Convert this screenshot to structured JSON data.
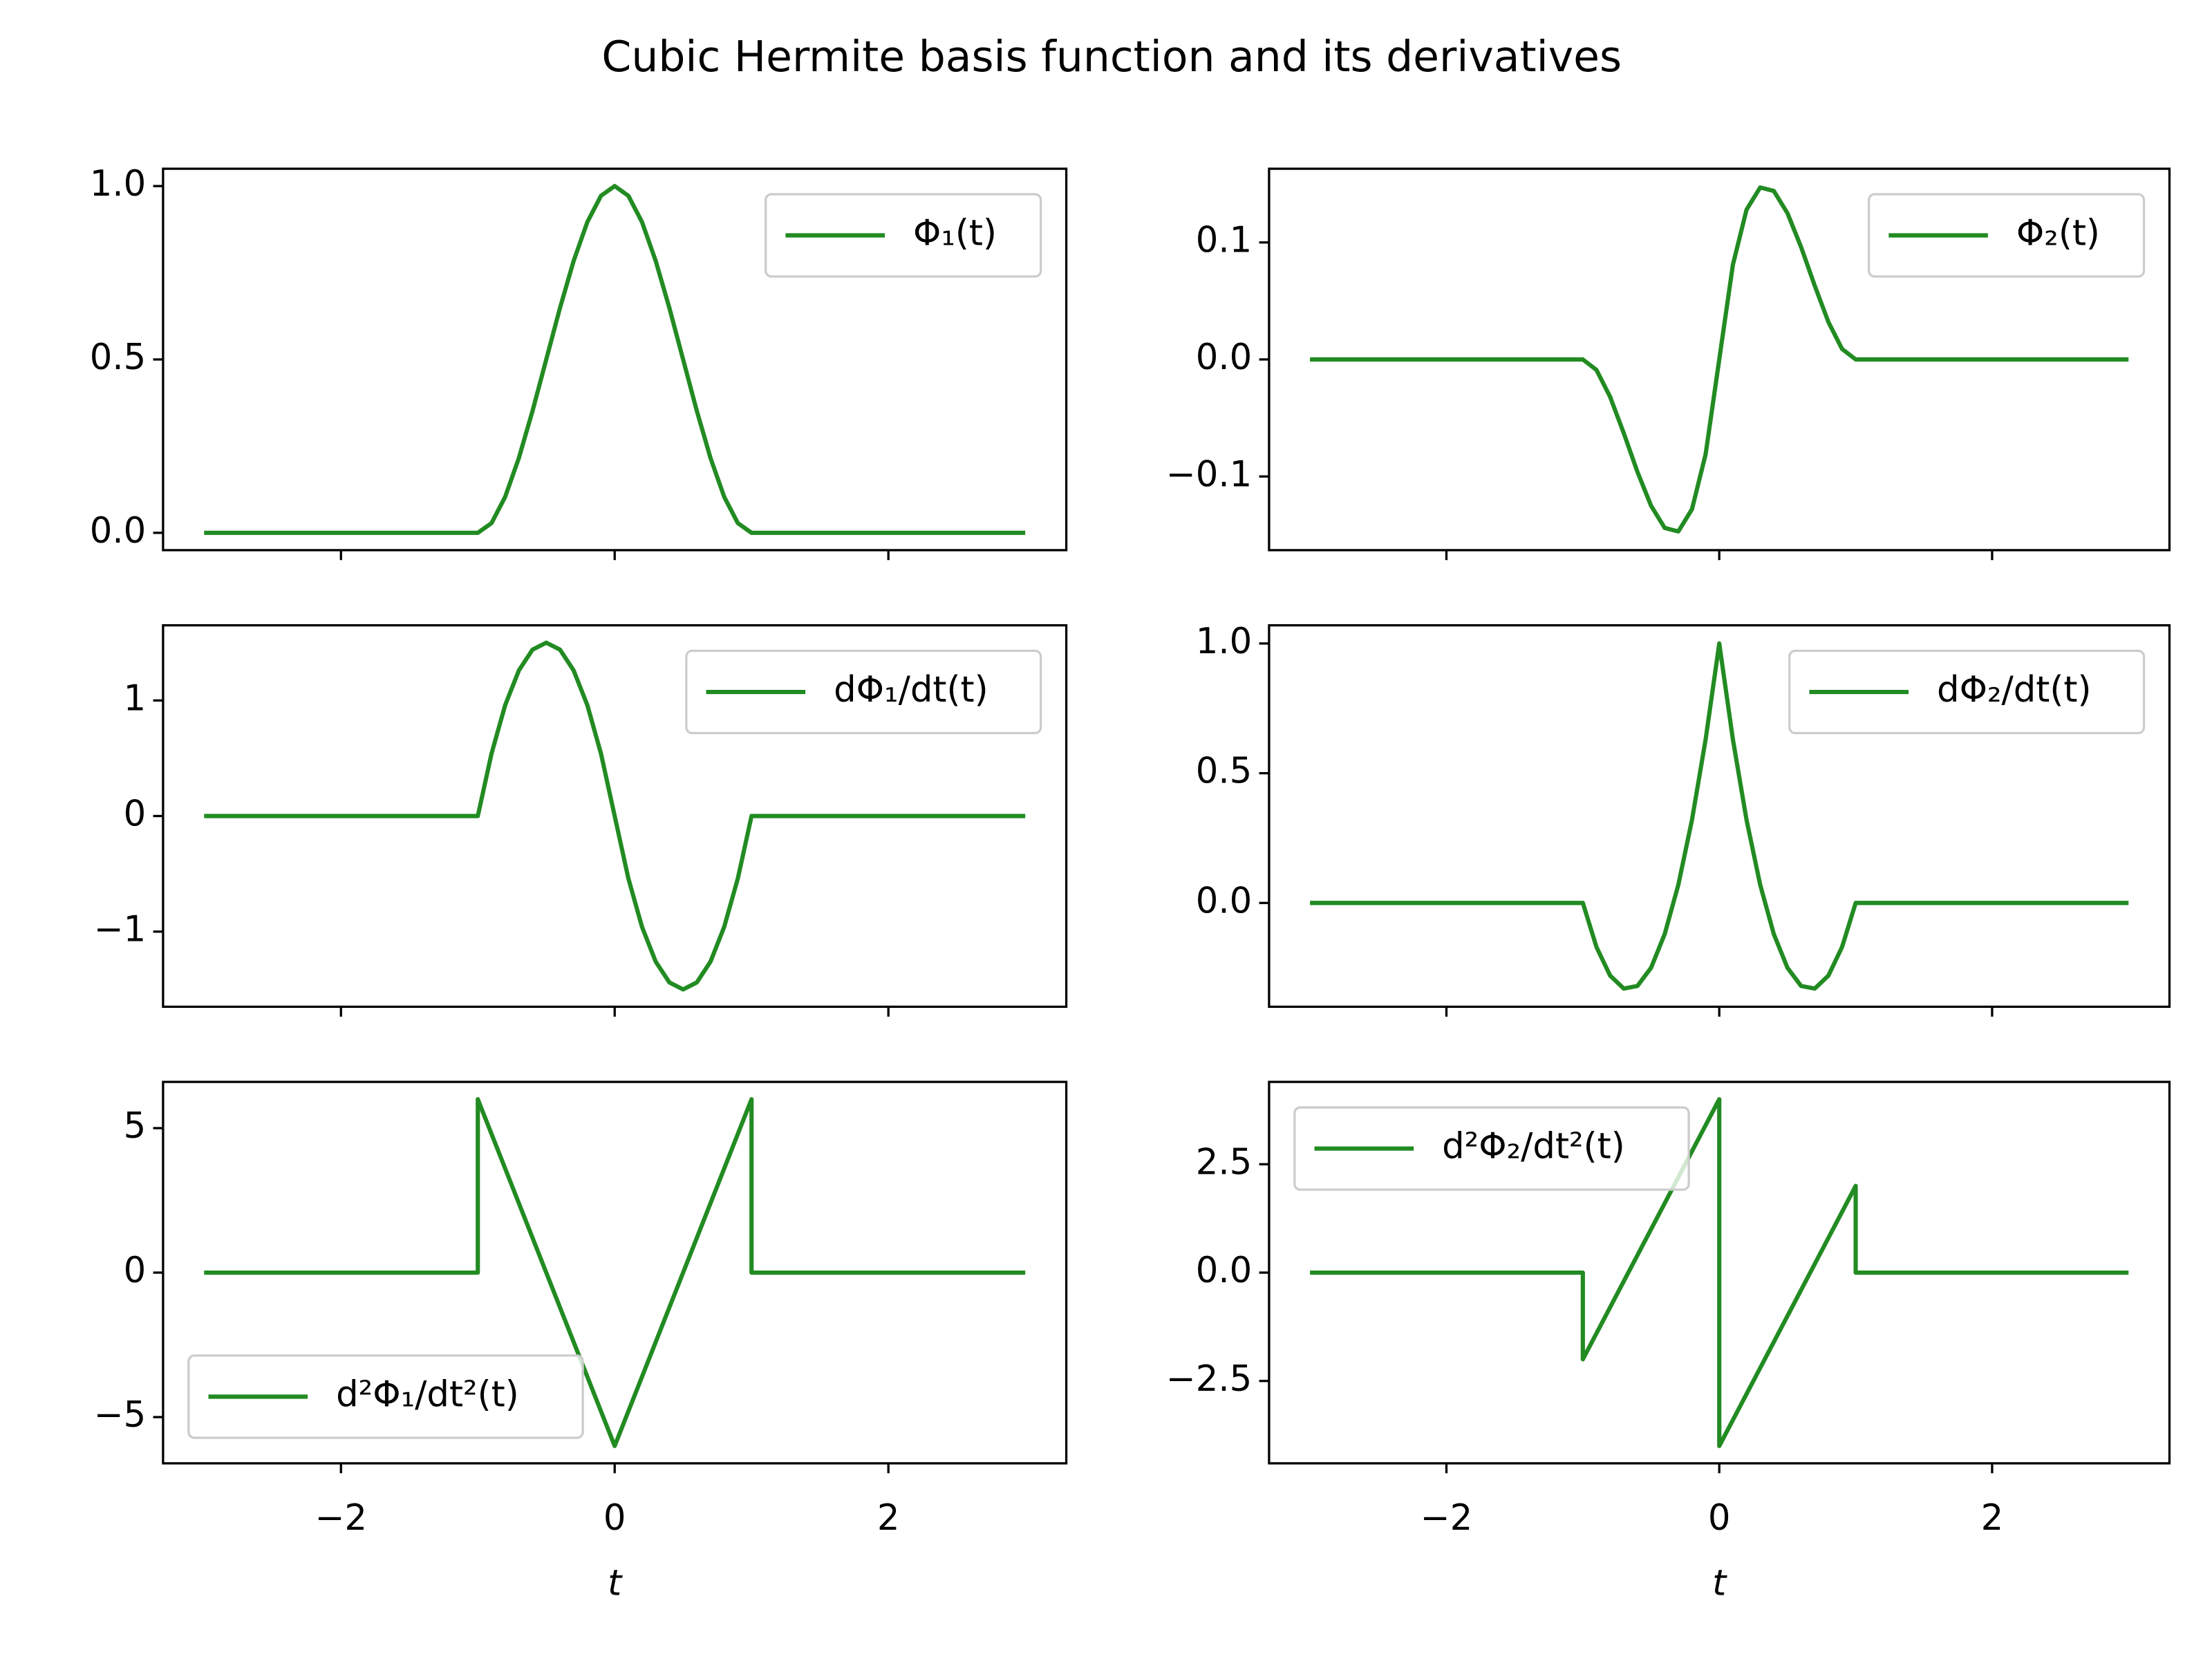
{
  "title": "Cubic Hermite basis function and its derivatives",
  "sharex": true,
  "chart_data": [
    {
      "type": "line",
      "xlim": [
        -3.3,
        3.3
      ],
      "xticks": [
        {
          "value": -2,
          "label": "−2"
        },
        0,
        2
      ],
      "ylim": [
        -0.05,
        1.05
      ],
      "yticks": [
        {
          "value": 0,
          "label": "0.0"
        },
        {
          "value": 0.5,
          "label": "0.5"
        },
        {
          "value": 1,
          "label": "1.0"
        }
      ],
      "legend": "upper right",
      "x": [
        -3,
        -1,
        -0.9,
        -0.8,
        -0.7,
        -0.6,
        -0.5,
        -0.4,
        -0.3,
        -0.2,
        -0.1,
        0,
        0.1,
        0.2,
        0.3,
        0.4,
        0.5,
        0.6,
        0.7,
        0.8,
        0.9,
        1,
        3
      ],
      "series": [
        {
          "name": "Φ₁(t)",
          "color": "#228b22",
          "values": [
            0,
            0,
            0.028,
            0.104,
            0.216,
            0.352,
            0.5,
            0.648,
            0.784,
            0.896,
            0.972,
            1,
            0.972,
            0.896,
            0.784,
            0.648,
            0.5,
            0.352,
            0.216,
            0.104,
            0.028,
            0,
            0
          ]
        }
      ]
    },
    {
      "type": "line",
      "xlim": [
        -3.3,
        3.3
      ],
      "xticks": [
        {
          "value": -2,
          "label": "−2"
        },
        0,
        2
      ],
      "ylim": [
        -0.163,
        0.163
      ],
      "yticks": [
        {
          "value": -0.1,
          "label": "−0.1"
        },
        {
          "value": 0,
          "label": "0.0"
        },
        {
          "value": 0.1,
          "label": "0.1"
        }
      ],
      "legend": "upper right",
      "x": [
        -3,
        -1,
        -0.9,
        -0.8,
        -0.7,
        -0.6,
        -0.5,
        -0.4,
        -0.3,
        -0.2,
        -0.1,
        0,
        0.1,
        0.2,
        0.3,
        0.4,
        0.5,
        0.6,
        0.7,
        0.8,
        0.9,
        1,
        3
      ],
      "series": [
        {
          "name": "Φ₂(t)",
          "color": "#228b22",
          "values": [
            0,
            0,
            -0.009,
            -0.032,
            -0.063,
            -0.096,
            -0.125,
            -0.144,
            -0.147,
            -0.128,
            -0.081,
            0,
            0.081,
            0.128,
            0.147,
            0.144,
            0.125,
            0.096,
            0.063,
            0.032,
            0.009,
            0,
            0
          ]
        }
      ]
    },
    {
      "type": "line",
      "xlim": [
        -3.3,
        3.3
      ],
      "xticks": [
        {
          "value": -2,
          "label": "−2"
        },
        0,
        2
      ],
      "ylim": [
        -1.65,
        1.65
      ],
      "yticks": [
        {
          "value": -1,
          "label": "−1"
        },
        0,
        1
      ],
      "legend": "upper right",
      "x": [
        -3,
        -1,
        -0.9,
        -0.8,
        -0.7,
        -0.6,
        -0.5,
        -0.4,
        -0.3,
        -0.2,
        -0.1,
        0,
        0.1,
        0.2,
        0.3,
        0.4,
        0.5,
        0.6,
        0.7,
        0.8,
        0.9,
        1,
        3
      ],
      "series": [
        {
          "name": "dΦ₁/dt(t)",
          "color": "#228b22",
          "values": [
            0,
            0,
            0.54,
            0.96,
            1.26,
            1.44,
            1.5,
            1.44,
            1.26,
            0.96,
            0.54,
            0,
            -0.54,
            -0.96,
            -1.26,
            -1.44,
            -1.5,
            -1.44,
            -1.26,
            -0.96,
            -0.54,
            0,
            0
          ]
        }
      ]
    },
    {
      "type": "line",
      "xlim": [
        -3.3,
        3.3
      ],
      "xticks": [
        {
          "value": -2,
          "label": "−2"
        },
        0,
        2
      ],
      "ylim": [
        -0.4,
        1.07
      ],
      "yticks": [
        {
          "value": 0,
          "label": "0.0"
        },
        {
          "value": 0.5,
          "label": "0.5"
        },
        {
          "value": 1,
          "label": "1.0"
        }
      ],
      "legend": "upper right",
      "x": [
        -3,
        -1,
        -0.9,
        -0.8,
        -0.7,
        -0.6,
        -0.5,
        -0.4,
        -0.3,
        -0.2,
        -0.1,
        0,
        0.1,
        0.2,
        0.3,
        0.4,
        0.5,
        0.6,
        0.7,
        0.8,
        0.9,
        1,
        3
      ],
      "series": [
        {
          "name": "dΦ₂/dt(t)",
          "color": "#228b22",
          "values": [
            0,
            0,
            -0.17,
            -0.28,
            -0.33,
            -0.32,
            -0.25,
            -0.12,
            0.07,
            0.32,
            0.63,
            1,
            0.63,
            0.32,
            0.07,
            -0.12,
            -0.25,
            -0.32,
            -0.33,
            -0.28,
            -0.17,
            0,
            0
          ]
        }
      ]
    },
    {
      "type": "line",
      "xlim": [
        -3.3,
        3.3
      ],
      "xticks": [
        {
          "value": -2,
          "label": "−2"
        },
        0,
        2
      ],
      "xlabel": "t",
      "ylim": [
        -6.6,
        6.6
      ],
      "yticks": [
        {
          "value": -5,
          "label": "−5"
        },
        0,
        5
      ],
      "legend": "lower left",
      "x": [
        -3,
        -1,
        -1,
        0,
        1,
        1,
        3
      ],
      "series": [
        {
          "name": "d²Φ₁/dt²(t)",
          "color": "#228b22",
          "values": [
            0,
            0,
            6,
            -6,
            6,
            0,
            0
          ]
        }
      ]
    },
    {
      "type": "line",
      "xlim": [
        -3.3,
        3.3
      ],
      "xticks": [
        {
          "value": -2,
          "label": "−2"
        },
        0,
        2
      ],
      "xlabel": "t",
      "ylim": [
        -4.4,
        4.4
      ],
      "yticks": [
        {
          "value": -2.5,
          "label": "−2.5"
        },
        {
          "value": 0,
          "label": "0.0"
        },
        2.5
      ],
      "legend": "upper left",
      "x": [
        -3,
        -1,
        -1,
        0,
        0,
        1,
        1,
        3
      ],
      "series": [
        {
          "name": "d²Φ₂/dt²(t)",
          "color": "#228b22",
          "values": [
            0,
            0,
            -2,
            4,
            -4,
            2,
            0,
            0
          ]
        }
      ]
    }
  ]
}
